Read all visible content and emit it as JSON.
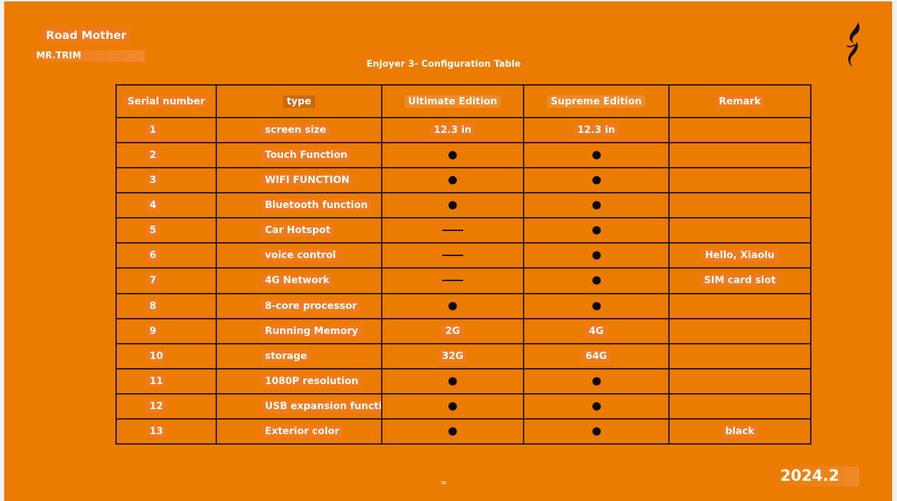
{
  "header": {
    "brand": "Road Mother",
    "subtitle": "MR.TRIM",
    "title": "Enjoyer 3- Configuration Table",
    "logo_icon": "flame-logo-icon"
  },
  "table": {
    "columns": [
      "Serial number",
      "type",
      "Ultimate Edition",
      "Supreme Edition",
      "Remark"
    ],
    "rows": [
      {
        "serial": "1",
        "type": "screen size",
        "ultimate": "12.3 in",
        "supreme": "12.3 in",
        "remark": ""
      },
      {
        "serial": "2",
        "type": "Touch Function",
        "ultimate": "●",
        "supreme": "●",
        "remark": ""
      },
      {
        "serial": "3",
        "type": "WIFI FUNCTION",
        "ultimate": "●",
        "supreme": "●",
        "remark": ""
      },
      {
        "serial": "4",
        "type": "Bluetooth function",
        "ultimate": "●",
        "supreme": "●",
        "remark": ""
      },
      {
        "serial": "5",
        "type": "Car Hotspot",
        "ultimate": "—",
        "supreme": "●",
        "remark": ""
      },
      {
        "serial": "6",
        "type": "voice control",
        "ultimate": "—",
        "supreme": "●",
        "remark": "Hello, Xiaolu"
      },
      {
        "serial": "7",
        "type": "4G Network",
        "ultimate": "—",
        "supreme": "●",
        "remark": "SIM card slot"
      },
      {
        "serial": "8",
        "type": "8-core processor",
        "ultimate": "●",
        "supreme": "●",
        "remark": ""
      },
      {
        "serial": "9",
        "type": "Running Memory",
        "ultimate": "2G",
        "supreme": "4G",
        "remark": ""
      },
      {
        "serial": "10",
        "type": "storage",
        "ultimate": "32G",
        "supreme": "64G",
        "remark": ""
      },
      {
        "serial": "11",
        "type": "1080P resolution",
        "ultimate": "●",
        "supreme": "●",
        "remark": ""
      },
      {
        "serial": "12",
        "type": "USB expansion function",
        "ultimate": "●",
        "supreme": "●",
        "remark": ""
      },
      {
        "serial": "13",
        "type": "Exterior color",
        "ultimate": "●",
        "supreme": "●",
        "remark": "black"
      }
    ]
  },
  "footer": {
    "page_marker": "∞",
    "date": "2024.2"
  }
}
